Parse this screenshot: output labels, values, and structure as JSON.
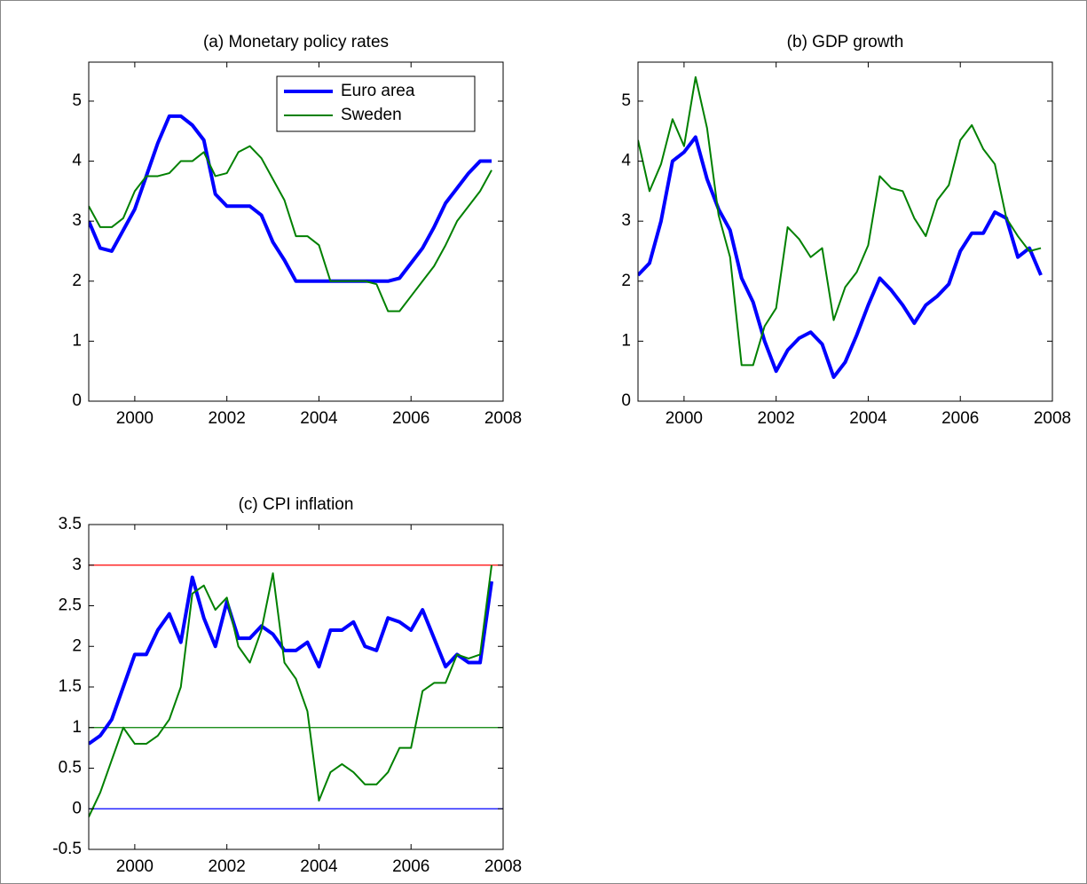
{
  "chart_data": [
    {
      "type": "line",
      "title": "(a) Monetary policy rates",
      "x": [
        1999,
        1999.25,
        1999.5,
        1999.75,
        2000,
        2000.25,
        2000.5,
        2000.75,
        2001,
        2001.25,
        2001.5,
        2001.75,
        2002,
        2002.25,
        2002.5,
        2002.75,
        2003,
        2003.25,
        2003.5,
        2003.75,
        2004,
        2004.25,
        2004.5,
        2004.75,
        2005,
        2005.25,
        2005.5,
        2005.75,
        2006,
        2006.25,
        2006.5,
        2006.75,
        2007,
        2007.25,
        2007.5,
        2007.75
      ],
      "series": [
        {
          "name": "Euro area",
          "color": "#0000ff",
          "values": [
            3.0,
            2.55,
            2.5,
            2.85,
            3.2,
            3.75,
            4.3,
            4.75,
            4.75,
            4.6,
            4.35,
            3.45,
            3.25,
            3.25,
            3.25,
            3.1,
            2.65,
            2.35,
            2.0,
            2.0,
            2.0,
            2.0,
            2.0,
            2.0,
            2.0,
            2.0,
            2.0,
            2.05,
            2.3,
            2.55,
            2.9,
            3.3,
            3.55,
            3.8,
            4.0,
            4.0
          ]
        },
        {
          "name": "Sweden",
          "color": "#008000",
          "values": [
            3.25,
            2.9,
            2.9,
            3.05,
            3.5,
            3.75,
            3.75,
            3.8,
            4.0,
            4.0,
            4.15,
            3.75,
            3.8,
            4.15,
            4.25,
            4.05,
            3.7,
            3.35,
            2.75,
            2.75,
            2.6,
            2.0,
            2.0,
            2.0,
            2.0,
            1.95,
            1.5,
            1.5,
            1.75,
            2.0,
            2.25,
            2.6,
            3.0,
            3.25,
            3.5,
            3.85
          ]
        }
      ],
      "xlim": [
        1999,
        2008
      ],
      "xticks": [
        2000,
        2002,
        2004,
        2006,
        2008
      ],
      "ylim": [
        0,
        5.65
      ],
      "yticks": [
        0,
        1,
        2,
        3,
        4,
        5
      ],
      "legend": "upper right"
    },
    {
      "type": "line",
      "title": "(b) GDP growth",
      "x": [
        1999,
        1999.25,
        1999.5,
        1999.75,
        2000,
        2000.25,
        2000.5,
        2000.75,
        2001,
        2001.25,
        2001.5,
        2001.75,
        2002,
        2002.25,
        2002.5,
        2002.75,
        2003,
        2003.25,
        2003.5,
        2003.75,
        2004,
        2004.25,
        2004.5,
        2004.75,
        2005,
        2005.25,
        2005.5,
        2005.75,
        2006,
        2006.25,
        2006.5,
        2006.75,
        2007,
        2007.25,
        2007.5,
        2007.75
      ],
      "series": [
        {
          "color": "#0000ff",
          "values": [
            2.1,
            2.3,
            3.0,
            4.0,
            4.15,
            4.4,
            3.7,
            3.2,
            2.85,
            2.05,
            1.65,
            1.0,
            0.5,
            0.85,
            1.05,
            1.15,
            0.95,
            0.4,
            0.65,
            1.1,
            1.6,
            2.05,
            1.85,
            1.6,
            1.3,
            1.6,
            1.75,
            1.95,
            2.5,
            2.8,
            2.8,
            3.15,
            3.05,
            2.4,
            2.55,
            2.1
          ]
        },
        {
          "color": "#008000",
          "values": [
            4.35,
            3.5,
            3.95,
            4.7,
            4.25,
            5.4,
            4.55,
            3.1,
            2.4,
            0.6,
            0.6,
            1.25,
            1.55,
            2.9,
            2.7,
            2.4,
            2.55,
            1.35,
            1.9,
            2.15,
            2.6,
            3.75,
            3.55,
            3.5,
            3.05,
            2.75,
            3.35,
            3.6,
            4.35,
            4.6,
            4.2,
            3.95,
            3.05,
            2.75,
            2.5,
            2.55
          ]
        }
      ],
      "xlim": [
        1999,
        2008
      ],
      "xticks": [
        2000,
        2002,
        2004,
        2006,
        2008
      ],
      "ylim": [
        0,
        5.65
      ],
      "yticks": [
        0,
        1,
        2,
        3,
        4,
        5
      ]
    },
    {
      "type": "line",
      "title": "(c) CPI inflation",
      "x": [
        1999,
        1999.25,
        1999.5,
        1999.75,
        2000,
        2000.25,
        2000.5,
        2000.75,
        2001,
        2001.25,
        2001.5,
        2001.75,
        2002,
        2002.25,
        2002.5,
        2002.75,
        2003,
        2003.25,
        2003.5,
        2003.75,
        2004,
        2004.25,
        2004.5,
        2004.75,
        2005,
        2005.25,
        2005.5,
        2005.75,
        2006,
        2006.25,
        2006.5,
        2006.75,
        2007,
        2007.25,
        2007.5,
        2007.75
      ],
      "series": [
        {
          "color": "#0000ff",
          "values": [
            0.8,
            0.9,
            1.1,
            1.5,
            1.9,
            1.9,
            2.2,
            2.4,
            2.05,
            2.85,
            2.35,
            2.0,
            2.55,
            2.1,
            2.1,
            2.25,
            2.15,
            1.95,
            1.95,
            2.05,
            1.75,
            2.2,
            2.2,
            2.3,
            2.0,
            1.95,
            2.35,
            2.3,
            2.2,
            2.45,
            2.1,
            1.75,
            1.9,
            1.8,
            1.8,
            2.8
          ]
        },
        {
          "color": "#008000",
          "values": [
            -0.1,
            0.2,
            0.6,
            1.0,
            0.8,
            0.8,
            0.9,
            1.1,
            1.5,
            2.65,
            2.75,
            2.45,
            2.6,
            2.0,
            1.8,
            2.2,
            2.9,
            1.8,
            1.6,
            1.2,
            0.1,
            0.45,
            0.55,
            0.45,
            0.3,
            0.3,
            0.45,
            0.75,
            0.75,
            1.45,
            1.55,
            1.55,
            1.9,
            1.85,
            1.9,
            3.0
          ]
        }
      ],
      "hlines": [
        {
          "value": 3,
          "color": "#ff0000"
        },
        {
          "value": 1,
          "color": "#008000"
        },
        {
          "value": 0,
          "color": "#0000ff"
        }
      ],
      "xlim": [
        1999,
        2008
      ],
      "xticks": [
        2000,
        2002,
        2004,
        2006,
        2008
      ],
      "ylim": [
        -0.5,
        3.5
      ],
      "yticks": [
        -0.5,
        0,
        0.5,
        1,
        1.5,
        2,
        2.5,
        3,
        3.5
      ]
    }
  ]
}
